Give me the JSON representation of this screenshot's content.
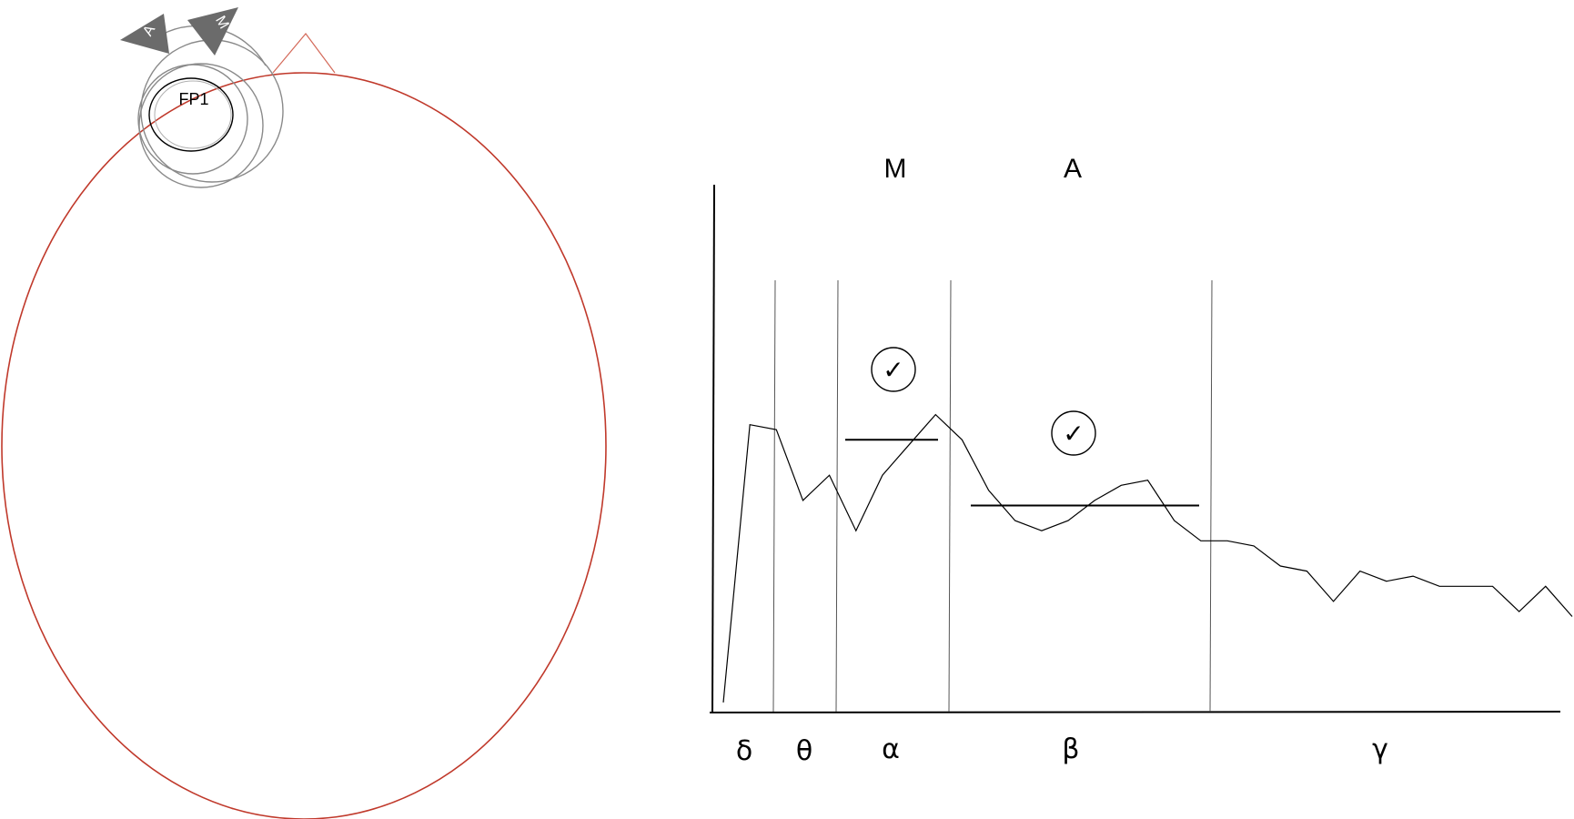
{
  "head": {
    "electrode_label": "FP1",
    "sensor_a_label": "A",
    "sensor_m_label": "M",
    "head_color": "#c0392b",
    "sensor_fill": "#6b6b6b"
  },
  "chart": {
    "band_labels": [
      "δ",
      "θ",
      "α",
      "β",
      "γ"
    ],
    "top_labels": {
      "alpha": "M",
      "beta": "A"
    },
    "check_symbol": "✓",
    "spectrum": [
      0.02,
      0.57,
      0.56,
      0.42,
      0.47,
      0.36,
      0.47,
      0.53,
      0.59,
      0.54,
      0.44,
      0.38,
      0.36,
      0.38,
      0.42,
      0.45,
      0.46,
      0.38,
      0.34,
      0.34,
      0.33,
      0.29,
      0.28,
      0.22,
      0.28,
      0.26,
      0.27,
      0.25,
      0.25,
      0.25,
      0.2,
      0.25,
      0.19
    ],
    "alpha_threshold": 0.54,
    "beta_threshold": 0.41
  }
}
